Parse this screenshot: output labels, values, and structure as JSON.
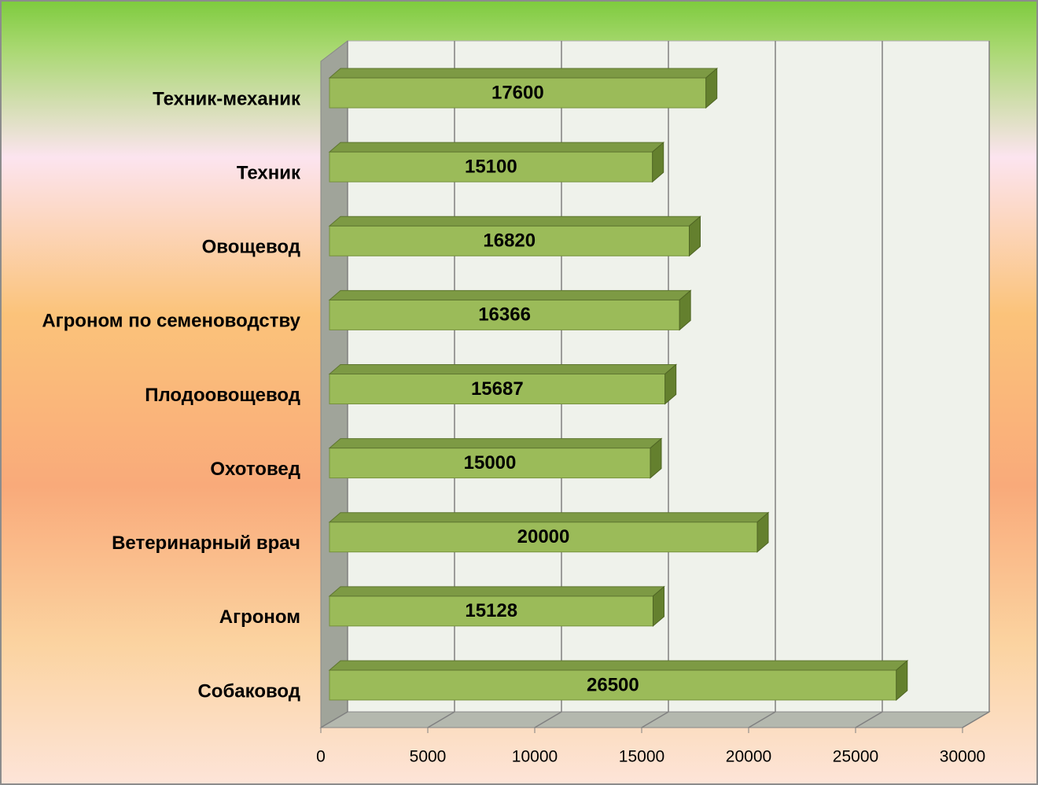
{
  "chart_data": {
    "type": "bar3d_horizontal",
    "categories": [
      "Техник-механик",
      "Техник",
      "Овощевод",
      "Агроном по семеноводству",
      "Плодоовощевод",
      "Охотовед",
      "Ветеринарный врач",
      "Агроном",
      "Собаковод"
    ],
    "values": [
      17600,
      15100,
      16820,
      16366,
      15687,
      15000,
      20000,
      15128,
      26500
    ],
    "color": "#9bbb59",
    "xlim": [
      0,
      30000
    ],
    "xticks": [
      0,
      5000,
      10000,
      15000,
      20000,
      25000,
      30000
    ],
    "grid": true
  }
}
